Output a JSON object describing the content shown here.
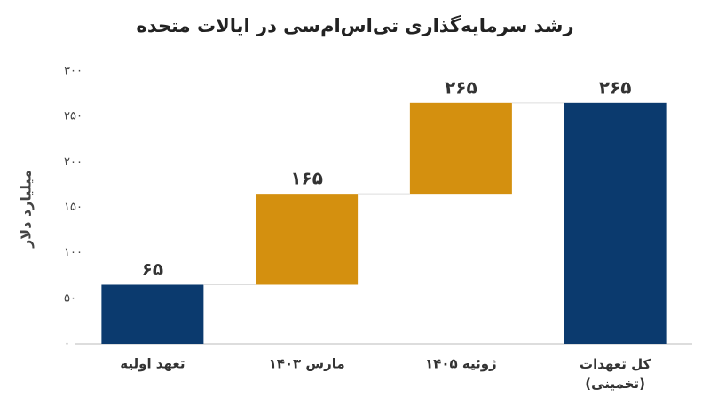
{
  "chart_data": {
    "type": "waterfall",
    "title": "رشد سرمایه‌گذاری تی‌اس‌ام‌سی در ایالات متحده",
    "y_label": "میلیارد دلار",
    "categories": [
      "تعهد اولیه",
      "مارس ۱۴۰۳",
      "ژوئیه ۱۴۰۵",
      "کل تعهدات\n(تخمینی)"
    ],
    "values": [
      65,
      100,
      100,
      265
    ],
    "is_total": [
      false,
      false,
      false,
      true
    ],
    "colors": [
      "#0b3a6e",
      "#d4900f",
      "#d4900f",
      "#0b3a6e"
    ],
    "total_labels": [
      {
        "value": 65,
        "label": "۶۵"
      },
      {
        "value": 165,
        "label": "۱۶۵"
      },
      {
        "value": 265,
        "label": "۲۶۵"
      },
      {
        "value": 265,
        "label": "۲۶۵"
      }
    ],
    "ylim": [
      0,
      300
    ],
    "yticks": [
      {
        "value": 0,
        "label": "۰"
      },
      {
        "value": 50,
        "label": "۵۰"
      },
      {
        "value": 100,
        "label": "۱۰۰"
      },
      {
        "value": 150,
        "label": "۱۵۰"
      },
      {
        "value": 200,
        "label": "۲۰۰"
      },
      {
        "value": 250,
        "label": "۲۵۰"
      },
      {
        "value": 300,
        "label": "۳۰۰"
      }
    ]
  }
}
